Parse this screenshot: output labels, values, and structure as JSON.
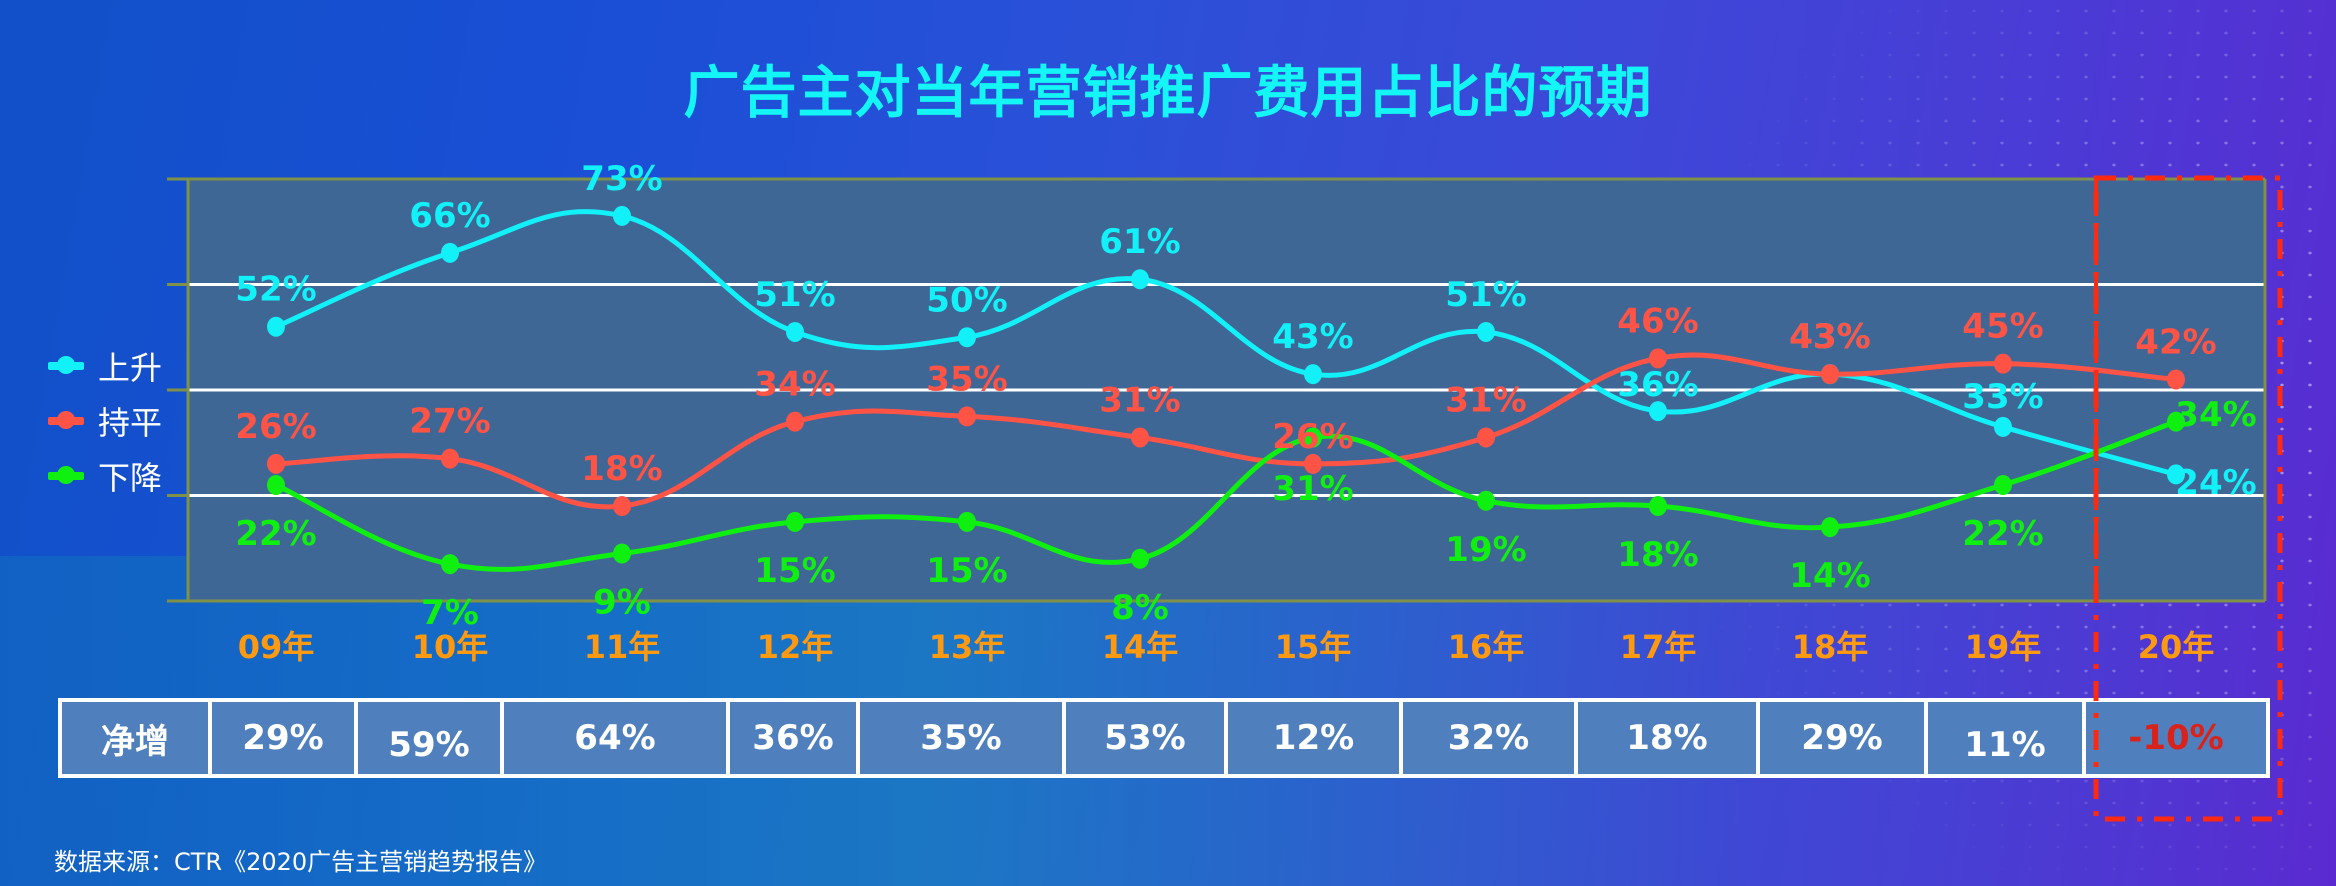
{
  "title": "广告主对当年营销推广费用占比的预期",
  "legend": [
    {
      "label": "上升",
      "color": "#12f0f8"
    },
    {
      "label": "持平",
      "color": "#ff5346"
    },
    {
      "label": "下降",
      "color": "#10f010"
    }
  ],
  "net_increase": {
    "label": "净增",
    "values": [
      "29%",
      "59%",
      "64%",
      "36%",
      "35%",
      "53%",
      "12%",
      "32%",
      "18%",
      "29%",
      "11%",
      "-10%"
    ]
  },
  "source": "数据来源：CTR《2020广告主营销趋势报告》",
  "colors": {
    "axis_label": "#ff9a10",
    "plot_bg": "#3f6796",
    "axis_line": "#7f9048",
    "gridline": "#ffffff",
    "highlight_box": "#ff2a10",
    "negative_value": "#d8231c"
  },
  "chart_data": {
    "type": "line",
    "title": "广告主对当年营销推广费用占比的预期",
    "categories": [
      "09年",
      "10年",
      "11年",
      "12年",
      "13年",
      "14年",
      "15年",
      "16年",
      "17年",
      "18年",
      "19年",
      "20年"
    ],
    "series": [
      {
        "name": "上升",
        "values": [
          52,
          66,
          73,
          51,
          50,
          61,
          43,
          51,
          36,
          43,
          33,
          24
        ],
        "labels": [
          "52%",
          "66%",
          "73%",
          "51%",
          "50%",
          "61%",
          "43%",
          "51%",
          "36%",
          "43%",
          "33%",
          "24%"
        ]
      },
      {
        "name": "持平",
        "values": [
          26,
          27,
          18,
          34,
          35,
          31,
          26,
          31,
          46,
          43,
          45,
          42
        ],
        "labels": [
          "26%",
          "27%",
          "18%",
          "34%",
          "35%",
          "31%",
          "26%",
          "31%",
          "46%",
          "43%",
          "45%",
          "42%"
        ]
      },
      {
        "name": "下降",
        "values": [
          22,
          7,
          9,
          15,
          15,
          8,
          31,
          19,
          18,
          14,
          22,
          34
        ],
        "labels": [
          "22%",
          "7%",
          "9%",
          "15%",
          "15%",
          "8%",
          "31%",
          "19%",
          "18%",
          "14%",
          "22%",
          "34%"
        ]
      }
    ],
    "table_row": {
      "label": "净增",
      "values": [
        "29%",
        "59%",
        "64%",
        "36%",
        "35%",
        "53%",
        "12%",
        "32%",
        "18%",
        "29%",
        "11%",
        "-10%"
      ]
    },
    "xlabel": "",
    "ylabel": "",
    "ylim": [
      0,
      80
    ],
    "gridlines": [
      20,
      40,
      60
    ],
    "legend_position": "left",
    "annotations": [
      "20年 highlighted with red dash-dot box (forecast year)"
    ]
  }
}
